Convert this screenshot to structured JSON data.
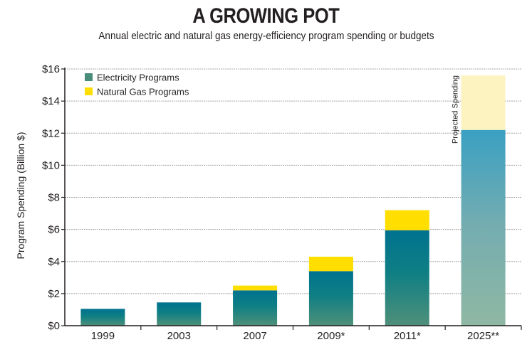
{
  "chart_data": {
    "type": "bar",
    "stacked": true,
    "title": "A GROWING POT",
    "subtitle": "Annual electric and natural gas energy-efficiency program spending or budgets",
    "xlabel": "",
    "ylabel": "Program Spending (Billion $)",
    "ylim": [
      0,
      16
    ],
    "yticks": [
      0,
      2,
      4,
      6,
      8,
      10,
      12,
      14,
      16
    ],
    "ytick_labels": [
      "$0",
      "$2",
      "$4",
      "$6",
      "$8",
      "$10",
      "$12",
      "$14",
      "$16"
    ],
    "categories": [
      "1999",
      "2003",
      "2007",
      "2009*",
      "2011*",
      "2025**"
    ],
    "series": [
      {
        "name": "Electricity Programs",
        "values": [
          1.05,
          1.45,
          2.2,
          3.4,
          5.95,
          12.2
        ],
        "color": "#4a8c7a"
      },
      {
        "name": "Natural Gas Programs",
        "values": [
          0,
          0,
          0.3,
          0.9,
          1.25,
          3.4
        ],
        "color": "#ffde00"
      }
    ],
    "projected_category": "2025**",
    "projected_colors": {
      "electricity": "#3fa0bf",
      "gas": "#fdf3c0"
    },
    "annotations": [
      {
        "text": "Projected Spending",
        "category": "2025**"
      }
    ],
    "grid": true,
    "legend_position": "top-left"
  }
}
